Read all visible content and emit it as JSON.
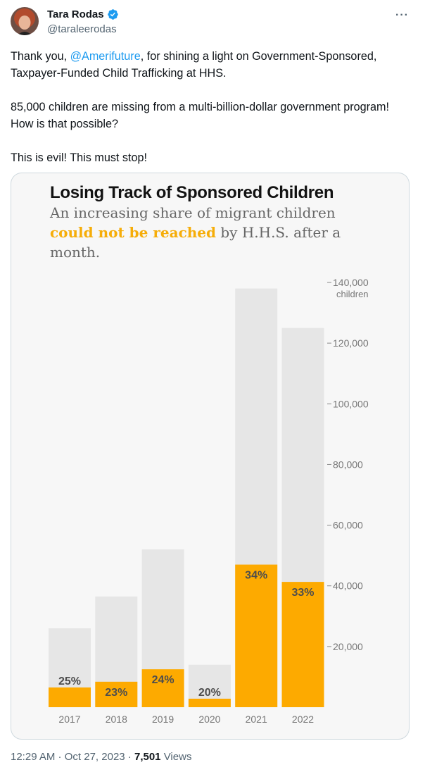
{
  "tweet": {
    "author_name": "Tara Rodas",
    "author_handle": "@taraleerodas",
    "text_before_mention": "Thank you, ",
    "mention": "@Amerifuture",
    "text_after_mention": ", for shining a light on Government-Sponsored, Taxpayer-Funded Child Trafficking at HHS.",
    "paragraph2": "85,000 children are missing from a multi-billion-dollar government program!  How is that possible?",
    "paragraph3": "This is evil! This must stop!",
    "time": "12:29 AM",
    "date": "Oct 27, 2023",
    "views_count": "7,501",
    "views_label": "Views",
    "more_icon": "more-icon",
    "verified_icon": "verified-badge-icon",
    "colors": {
      "accent": "#1d9bf0",
      "text": "#0f1419",
      "muted": "#536471"
    }
  },
  "chart_data": {
    "type": "bar",
    "title": "Losing Track of Sponsored Children",
    "subtitle_before": "An increasing share of migrant children ",
    "subtitle_highlight": "could not be reached",
    "subtitle_after": " by H.H.S. after a month.",
    "categories": [
      "2017",
      "2018",
      "2019",
      "2020",
      "2021",
      "2022"
    ],
    "series": [
      {
        "values": [
          26000,
          36500,
          52000,
          14000,
          138000,
          125000
        ],
        "color": "#e6e6e6"
      },
      {
        "values": [
          6500,
          8400,
          12500,
          2800,
          47000,
          41300
        ],
        "color": "#fdaa00"
      }
    ],
    "percent_labels": [
      "25%",
      "23%",
      "24%",
      "20%",
      "34%",
      "33%"
    ],
    "yticks": [
      "20,000",
      "40,000",
      "60,000",
      "80,000",
      "100,000",
      "120,000",
      "140,000"
    ],
    "ytick_values": [
      20000,
      40000,
      60000,
      80000,
      100000,
      120000,
      140000
    ],
    "y_unit": "children",
    "ylim": [
      0,
      140000
    ],
    "grid": false
  }
}
